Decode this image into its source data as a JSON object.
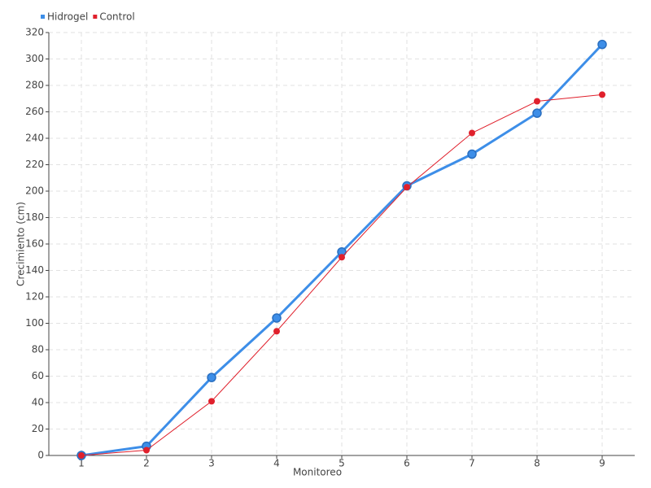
{
  "chart_data": {
    "type": "line",
    "x_label": "Monitoreo",
    "y_label": "Crecimiento (cm)",
    "categories": [
      "1",
      "2",
      "3",
      "4",
      "5",
      "6",
      "7",
      "8",
      "9"
    ],
    "series": [
      {
        "name": "Hidrogel",
        "color": "#3d8ee8",
        "values": [
          0,
          7,
          59,
          104,
          154,
          204,
          228,
          259,
          311
        ]
      },
      {
        "name": "Control",
        "color": "#e0202c",
        "values": [
          0,
          4,
          41,
          94,
          150,
          203,
          244,
          268,
          273
        ]
      }
    ],
    "ylim": [
      0,
      320
    ],
    "yticks": [
      0,
      20,
      40,
      60,
      80,
      100,
      120,
      140,
      160,
      180,
      200,
      220,
      240,
      260,
      280,
      300,
      320
    ],
    "grid": true,
    "legend": "top-left"
  }
}
